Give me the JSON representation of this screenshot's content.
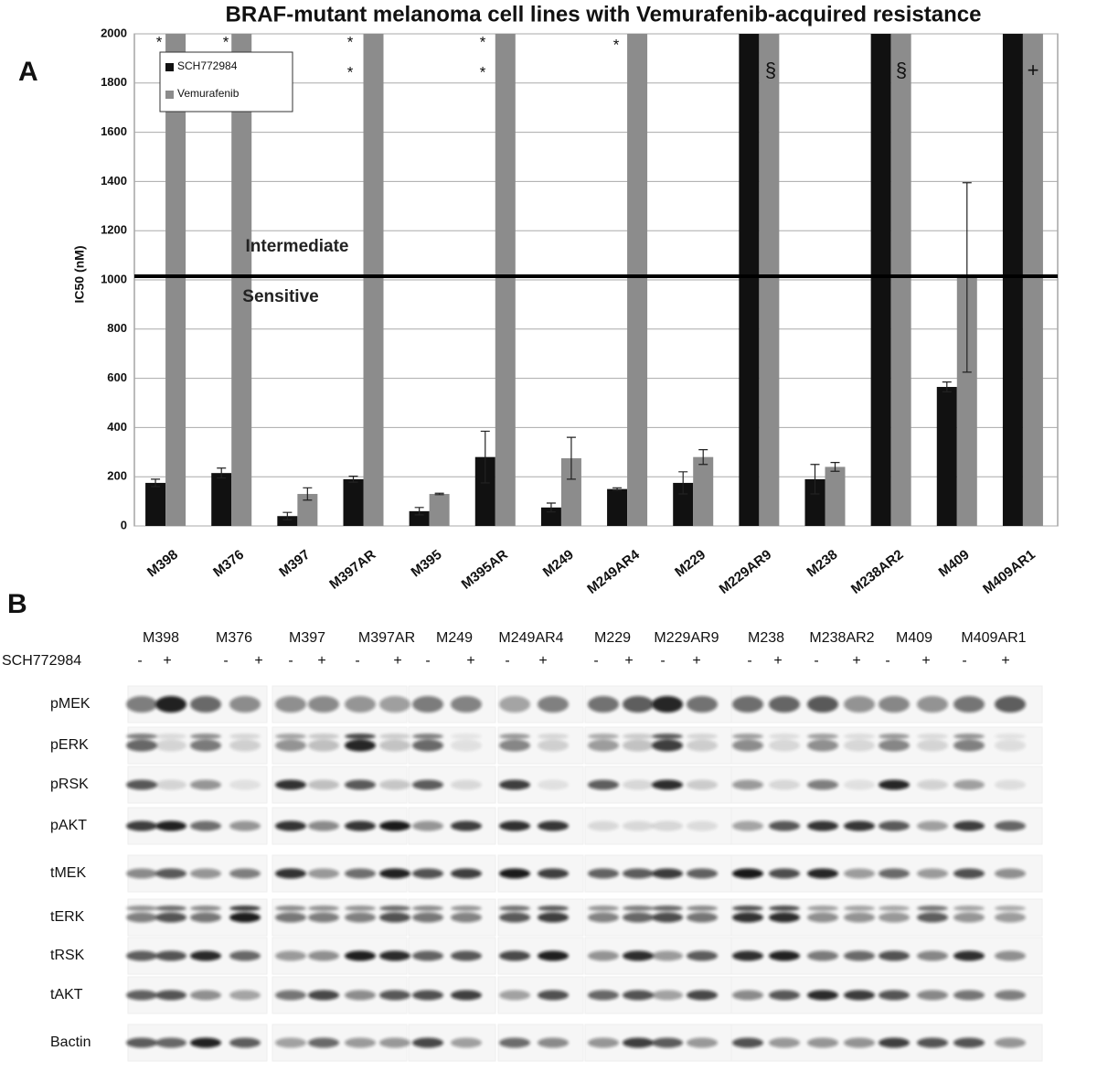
{
  "panel_labels": [
    "A",
    "B"
  ],
  "chart_data": {
    "type": "bar",
    "title": "BRAF-mutant melanoma cell lines with Vemurafenib-acquired resistance",
    "y_label": "IC50 (nM)",
    "categories": [
      "M398",
      "M376",
      "M397",
      "M397AR",
      "M395",
      "M395AR",
      "M249",
      "M249AR4",
      "M229",
      "M229AR9",
      "M238",
      "M238AR2",
      "M409",
      "M409AR1"
    ],
    "series": [
      {
        "name": "SCH772984",
        "color": "#111111",
        "values": [
          175,
          215,
          40,
          190,
          60,
          280,
          75,
          150,
          175,
          2000,
          190,
          2000,
          565,
          2000
        ],
        "errors": [
          15,
          20,
          15,
          12,
          15,
          105,
          18,
          5,
          45,
          null,
          60,
          null,
          20,
          null
        ]
      },
      {
        "name": "Vemurafenib",
        "color": "#8c8c8c",
        "values": [
          2000,
          2000,
          130,
          2000,
          130,
          2000,
          275,
          2000,
          280,
          2000,
          240,
          2000,
          1010,
          2000
        ],
        "errors": [
          null,
          null,
          25,
          null,
          3,
          null,
          85,
          null,
          30,
          null,
          18,
          null,
          385,
          null
        ]
      }
    ],
    "ylim": [
      0,
      2000
    ],
    "yticks": [
      0,
      200,
      400,
      600,
      800,
      1000,
      1200,
      1400,
      1600,
      1800,
      2000
    ],
    "grid": true,
    "threshold": 1000,
    "legend": "top-left",
    "annotations": [
      "*",
      "*",
      "*",
      "*",
      "*",
      "*",
      "*",
      "§",
      "§",
      "+",
      "Intermediate",
      "Sensitive"
    ]
  },
  "blot": {
    "row_header": "SCH772984",
    "groups": [
      "M398",
      "M376",
      "M397",
      "M397AR",
      "M249",
      "M249AR4",
      "M229",
      "M229AR9",
      "M238",
      "M238AR2",
      "M409",
      "M409AR1"
    ],
    "lanes": [
      "-",
      "+",
      "-",
      "+",
      "-",
      "+",
      "-",
      "+",
      "-",
      "+",
      "-",
      "+",
      "-",
      "+",
      "-",
      "+",
      "-",
      "+",
      "-",
      "+",
      "-",
      "+",
      "-",
      "+"
    ],
    "rows": [
      "pMEK",
      "pERK",
      "pRSK",
      "pAKT",
      "tMEK",
      "tERK",
      "tRSK",
      "tAKT",
      "Bactin"
    ]
  }
}
